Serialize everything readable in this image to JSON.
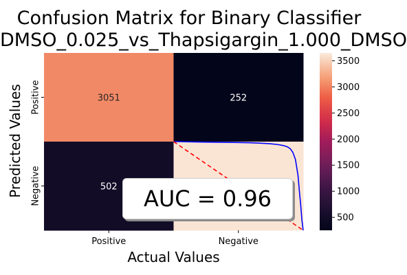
{
  "title": {
    "line1": "Confusion Matrix for Binary Classifier",
    "line2": "DMSO_0.025_vs_Thapsigargin_1.000_DMSO"
  },
  "chart_data": [
    {
      "type": "heatmap",
      "title": "Confusion Matrix for Binary Classifier DMSO_0.025_vs_Thapsigargin_1.000_DMSO",
      "xlabel": "Actual Values",
      "ylabel": "Predicted Values",
      "x_categories": [
        "Positive",
        "Negative"
      ],
      "y_categories": [
        "Positive",
        "Negative"
      ],
      "matrix": [
        [
          3051,
          252
        ],
        [
          502,
          3620
        ]
      ],
      "cell_labels": [
        [
          "3051",
          "252"
        ],
        [
          "502",
          ""
        ]
      ],
      "colormap": "rocket",
      "colorbar": {
        "vmin": 252,
        "vmax": 3650,
        "ticks": [
          500,
          1000,
          1500,
          2000,
          2500,
          3000,
          3500
        ]
      }
    },
    {
      "type": "line",
      "title": "",
      "annotation": "AUC = 0.96",
      "series": [
        {
          "style": "roc",
          "color": "#0000ff",
          "x": [
            0.0,
            0.05,
            0.1,
            0.2,
            0.3,
            0.4,
            0.5,
            0.6,
            0.7,
            0.75,
            0.8,
            0.85,
            0.88,
            0.9,
            0.92,
            0.94,
            0.96,
            0.97,
            0.98,
            0.99,
            1.0
          ],
          "y": [
            1.0,
            1.0,
            0.998,
            0.996,
            0.994,
            0.992,
            0.99,
            0.987,
            0.98,
            0.975,
            0.968,
            0.955,
            0.94,
            0.92,
            0.88,
            0.8,
            0.62,
            0.45,
            0.3,
            0.12,
            0.0
          ]
        },
        {
          "style": "diagonal",
          "color": "#ff0000",
          "x": [
            0,
            1
          ],
          "y": [
            1,
            0
          ]
        }
      ],
      "xlim": [
        0,
        1
      ],
      "ylim": [
        0,
        1
      ]
    }
  ]
}
